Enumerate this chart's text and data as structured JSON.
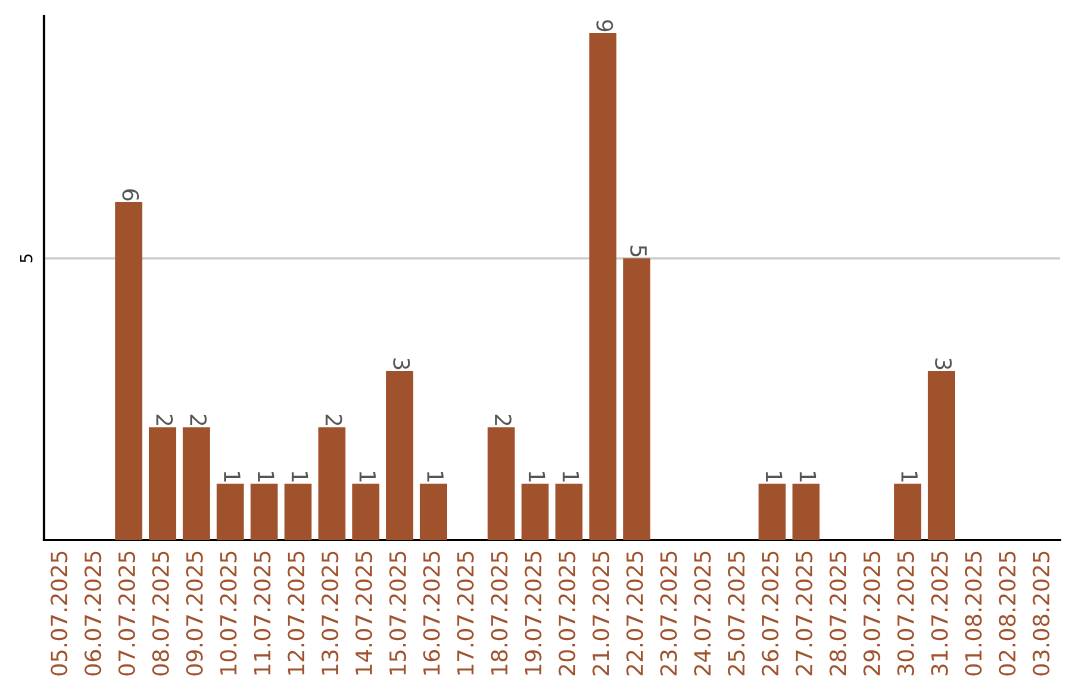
{
  "chart_data": {
    "type": "bar",
    "categories": [
      "05.07.2025",
      "06.07.2025",
      "07.07.2025",
      "08.07.2025",
      "09.07.2025",
      "10.07.2025",
      "11.07.2025",
      "12.07.2025",
      "13.07.2025",
      "14.07.2025",
      "15.07.2025",
      "16.07.2025",
      "17.07.2025",
      "18.07.2025",
      "19.07.2025",
      "20.07.2025",
      "21.07.2025",
      "22.07.2025",
      "23.07.2025",
      "24.07.2025",
      "25.07.2025",
      "26.07.2025",
      "27.07.2025",
      "28.07.2025",
      "29.07.2025",
      "30.07.2025",
      "31.07.2025",
      "01.08.2025",
      "02.08.2025",
      "03.08.2025"
    ],
    "values": [
      0,
      0,
      6,
      2,
      2,
      1,
      1,
      1,
      2,
      1,
      3,
      1,
      0,
      2,
      1,
      1,
      9,
      5,
      0,
      0,
      0,
      1,
      1,
      0,
      0,
      1,
      3,
      0,
      0,
      0
    ],
    "value_labels": [
      null,
      null,
      "6",
      "2",
      "2",
      "1",
      "1",
      "1",
      "2",
      "1",
      "3",
      "1",
      null,
      "2",
      "1",
      "1",
      "9",
      "5",
      null,
      null,
      null,
      "1",
      "1",
      null,
      null,
      "1",
      "3",
      null,
      null,
      null
    ],
    "color": "#a0522d",
    "ylim": [
      0,
      9.3
    ],
    "yticks": [
      5
    ],
    "grid": "y",
    "legend": false
  }
}
